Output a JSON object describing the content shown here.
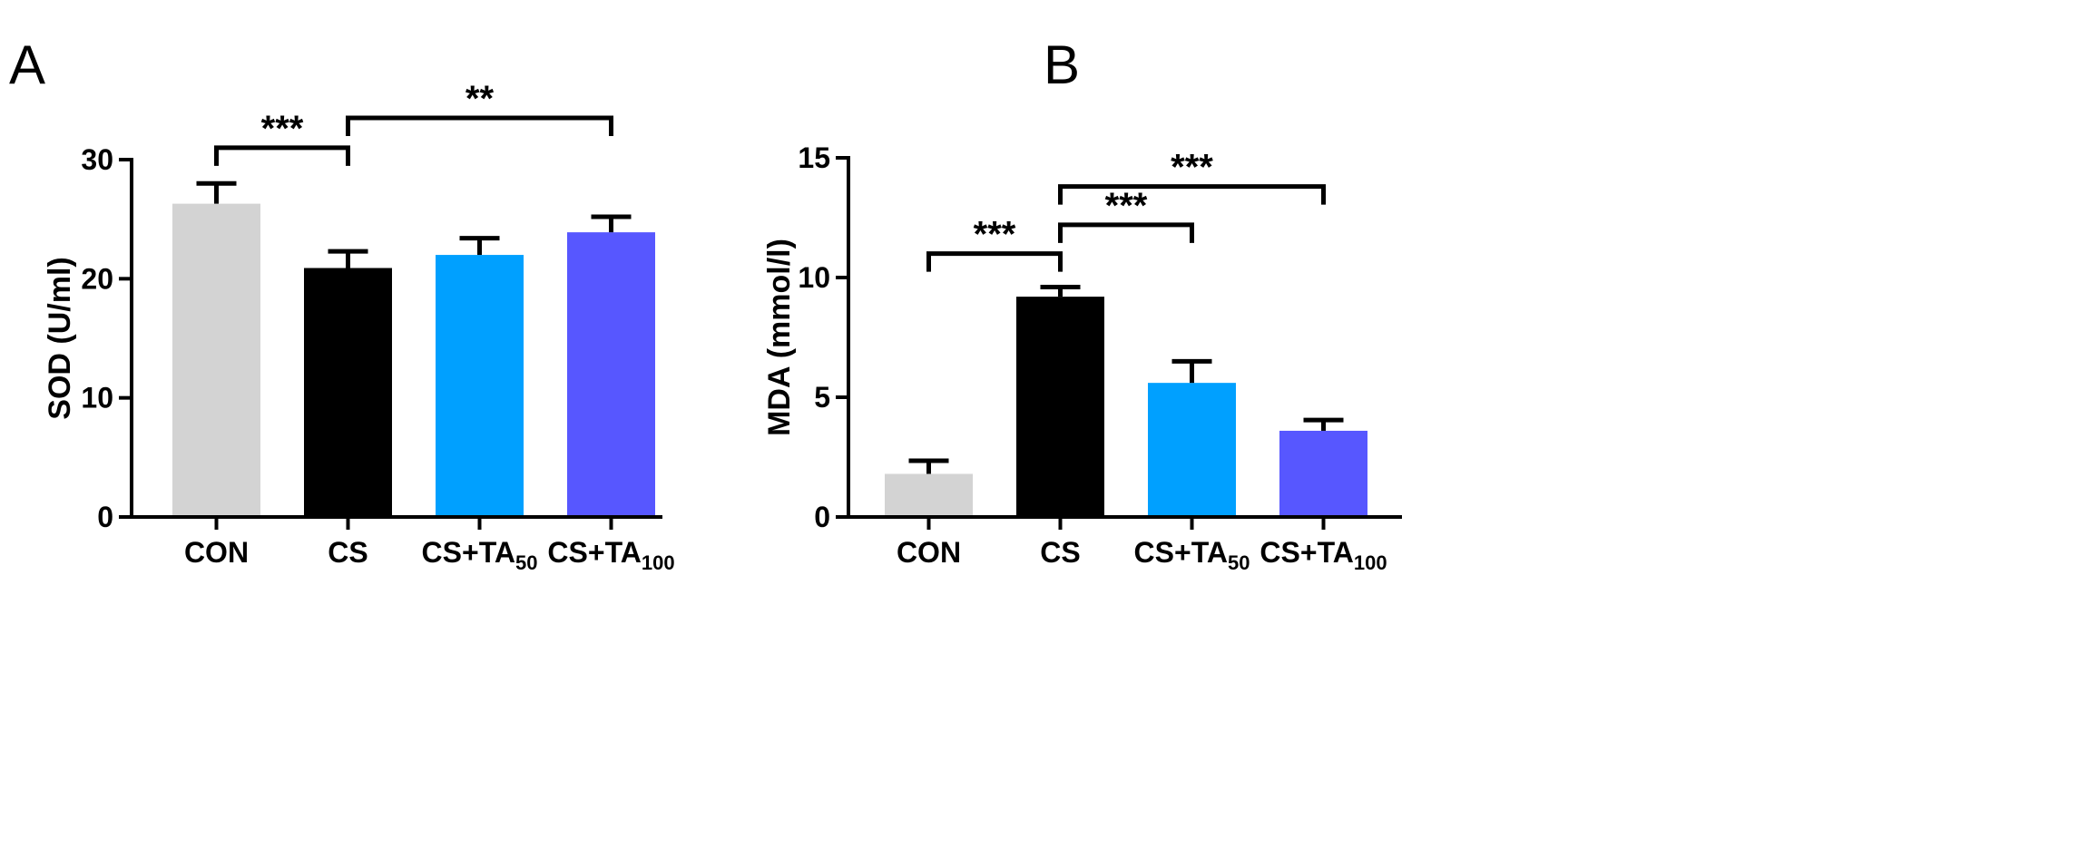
{
  "chart_data": [
    {
      "panel": "A",
      "type": "bar",
      "categories": [
        {
          "base": "CON",
          "sub": ""
        },
        {
          "base": "CS",
          "sub": ""
        },
        {
          "base": "CS+TA",
          "sub": "50"
        },
        {
          "base": "CS+TA",
          "sub": "100"
        }
      ],
      "values": [
        26.3,
        20.9,
        22.0,
        23.9
      ],
      "errors": [
        1.7,
        1.4,
        1.4,
        1.3
      ],
      "colors": [
        "#d3d3d3",
        "#000000",
        "#00a0ff",
        "#5757ff"
      ],
      "ylabel": "SOD (U/ml)",
      "ylim": [
        0,
        30
      ],
      "yticks": [
        0,
        10,
        20,
        30
      ],
      "significance": [
        {
          "from": 0,
          "to": 1,
          "label": "***",
          "y": 31.0
        },
        {
          "from": 1,
          "to": 3,
          "label": "**",
          "y": 33.5
        }
      ]
    },
    {
      "panel": "B",
      "type": "bar",
      "categories": [
        {
          "base": "CON",
          "sub": ""
        },
        {
          "base": "CS",
          "sub": ""
        },
        {
          "base": "CS+TA",
          "sub": "50"
        },
        {
          "base": "CS+TA",
          "sub": "100"
        }
      ],
      "values": [
        1.8,
        9.2,
        5.6,
        3.6
      ],
      "errors": [
        0.55,
        0.4,
        0.9,
        0.45
      ],
      "colors": [
        "#d3d3d3",
        "#000000",
        "#00a0ff",
        "#5757ff"
      ],
      "ylabel": "MDA (mmol/l)",
      "ylim": [
        0,
        15
      ],
      "yticks": [
        0,
        5,
        10,
        15
      ],
      "significance": [
        {
          "from": 0,
          "to": 1,
          "label": "***",
          "y": 11.0
        },
        {
          "from": 1,
          "to": 2,
          "label": "***",
          "y": 12.2
        },
        {
          "from": 1,
          "to": 3,
          "label": "***",
          "y": 13.8
        }
      ]
    }
  ]
}
